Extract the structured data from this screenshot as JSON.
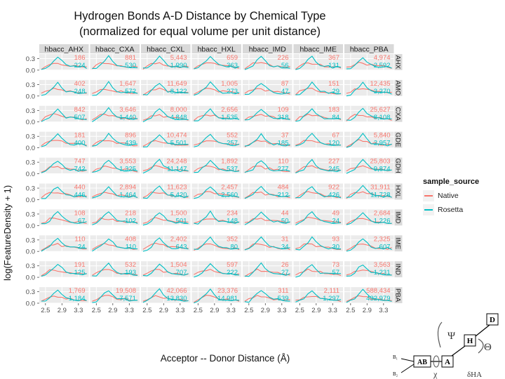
{
  "chart_data": {
    "type": "line",
    "title": "Hydrogen Bonds A-D Distance by Chemical Type",
    "subtitle": "(normalized for equal volume per unit distance)",
    "xlabel": "Acceptor -- Donor Distance (Å)",
    "ylabel": "log(FeatureDensity + 1)",
    "x_ticks": [
      "2.5",
      "2.9",
      "3.3"
    ],
    "xlim": [
      2.35,
      3.55
    ],
    "y_ticks": [
      "0.0",
      "0.3"
    ],
    "ylim": [
      0,
      0.42
    ],
    "col_facets": [
      "hbacc_AHX",
      "hbacc_CXA",
      "hbacc_CXL",
      "hbacc_HXL",
      "hbacc_IMD",
      "hbacc_IME",
      "hbacc_PBA"
    ],
    "row_facets": [
      "AHX",
      "AMO",
      "CXA",
      "GDE",
      "GDH",
      "HXL",
      "IMD",
      "IME",
      "IND",
      "PBA"
    ],
    "legend": {
      "title": "sample_source",
      "position": "right",
      "entries": [
        {
          "name": "Native",
          "color": "#f8766d"
        },
        {
          "name": "Rosetta",
          "color": "#00bfc4"
        }
      ]
    },
    "counts_native": [
      [
        "186",
        "881",
        "5,443",
        "659",
        "226",
        "367",
        "4,974"
      ],
      [
        "402",
        "1,647",
        "11,649",
        "1,005",
        "87",
        "151",
        "12,435"
      ],
      [
        "842",
        "3,646",
        "8,000",
        "2,656",
        "109",
        "183",
        "25,627"
      ],
      [
        "181",
        "896",
        "10,474",
        "552",
        "37",
        "67",
        "5,840"
      ],
      [
        "747",
        "3,553",
        "24,248",
        "1,892",
        "110",
        "227",
        "25,803"
      ],
      [
        "440",
        "2,894",
        "11,623",
        "2,457",
        "484",
        "922",
        "31,911"
      ],
      [
        "108",
        "218",
        "1,500",
        "234",
        "44",
        "49",
        "2,684"
      ],
      [
        "110",
        "408",
        "2,402",
        "352",
        "31",
        "93",
        "2,325"
      ],
      [
        "191",
        "532",
        "1,504",
        "597",
        "26",
        "73",
        "3,563"
      ],
      [
        "1,769",
        "19,508",
        "42,066",
        "23,376",
        "311",
        "2,111",
        "588,434"
      ]
    ],
    "counts_rosetta": [
      [
        "224",
        "530",
        "1,990",
        "363",
        "56",
        "131",
        "2,592"
      ],
      [
        "248",
        "572",
        "8,122",
        "273",
        "47",
        "29",
        "3,270"
      ],
      [
        "507",
        "1,440",
        "4,848",
        "1,535",
        "318",
        "84",
        "8,108"
      ],
      [
        "400",
        "439",
        "5,501",
        "257",
        "185",
        "120",
        "2,957"
      ],
      [
        "742",
        "1,325",
        "11,147",
        "537",
        "277",
        "245",
        "9,874"
      ],
      [
        "446",
        "1,464",
        "5,420",
        "2,560",
        "212",
        "426",
        "11,728"
      ],
      [
        "67",
        "102",
        "501",
        "148",
        "50",
        "24",
        "1,226"
      ],
      [
        "24",
        "110",
        "643",
        "80",
        "34",
        "30",
        "607"
      ],
      [
        "125",
        "193",
        "707",
        "222",
        "27",
        "57",
        "1,231"
      ],
      [
        "1,184",
        "7,571",
        "13,830",
        "14,981",
        "539",
        "1,297",
        "432,979"
      ]
    ],
    "curve_x": [
      2.4,
      2.5,
      2.6,
      2.7,
      2.8,
      2.9,
      3.0,
      3.1,
      3.2,
      3.3,
      3.4,
      3.5
    ],
    "curve_native_profile": [
      0.02,
      0.08,
      0.14,
      0.16,
      0.15,
      0.12,
      0.1,
      0.08,
      0.07,
      0.06,
      0.05,
      0.04
    ],
    "curve_rosetta_profile": [
      0.0,
      0.02,
      0.1,
      0.22,
      0.32,
      0.2,
      0.1,
      0.07,
      0.06,
      0.05,
      0.05,
      0.04
    ]
  },
  "diagram": {
    "labels": [
      "D",
      "Ψ",
      "H",
      "Θ",
      "B₁",
      "B₂",
      "AB",
      "A",
      "χ",
      "δHA"
    ]
  }
}
